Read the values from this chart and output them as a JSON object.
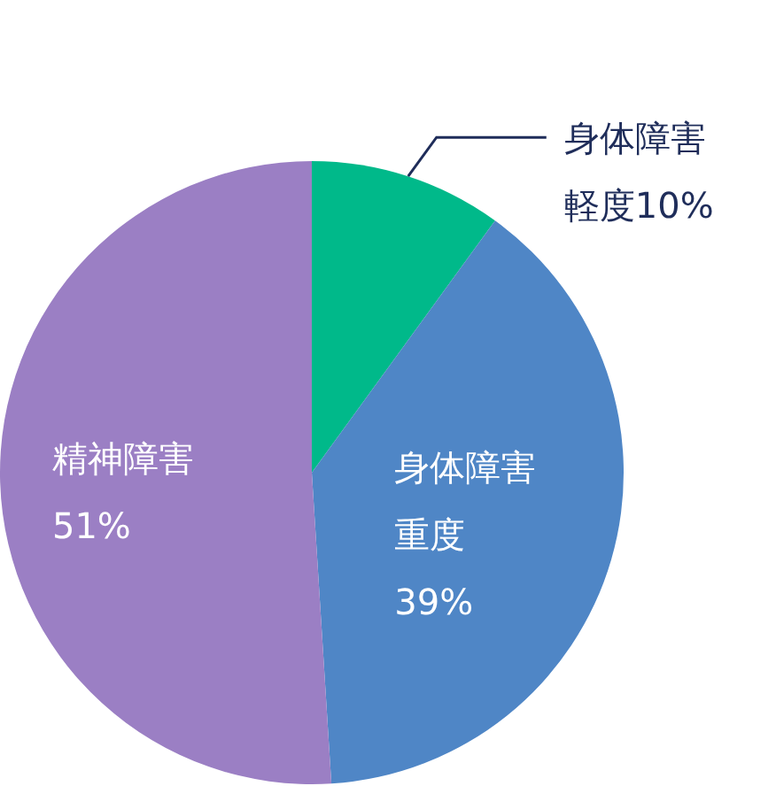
{
  "chart_data": {
    "type": "pie",
    "categories": [
      "身体障害軽度",
      "身体障害重度",
      "精神障害"
    ],
    "values": [
      10,
      39,
      51
    ],
    "value_labels": [
      "10%",
      "39%",
      "51%"
    ],
    "colors": [
      "#00b98a",
      "#4f86c6",
      "#9b7fc4"
    ],
    "legend": false
  }
}
